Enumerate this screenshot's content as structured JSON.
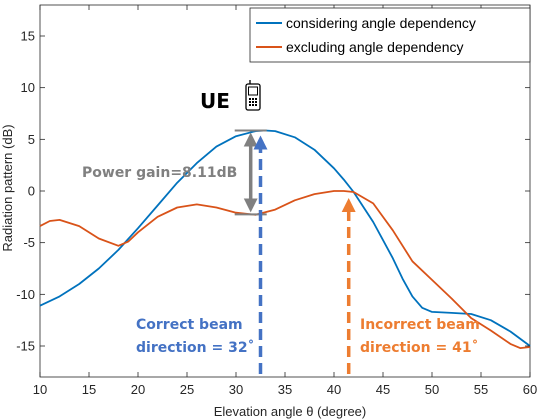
{
  "chart_data": {
    "type": "line",
    "xlabel": "Elevation angle θ (degree)",
    "ylabel": "Radiation pattern (dB)",
    "xlim": [
      10,
      60
    ],
    "ylim": [
      -18,
      18
    ],
    "xticks": [
      10,
      15,
      20,
      25,
      30,
      35,
      40,
      45,
      50,
      55,
      60
    ],
    "yticks": [
      -15,
      -10,
      -5,
      0,
      5,
      10,
      15
    ],
    "grid": false,
    "legend_position": "top-right",
    "series": [
      {
        "name": "considering angle dependency",
        "color": "#0072BD",
        "x": [
          10,
          12,
          14,
          16,
          18,
          20,
          22,
          24,
          26,
          28,
          30,
          32,
          33,
          34,
          36,
          38,
          40,
          41,
          42,
          44,
          46,
          47,
          48,
          49,
          50,
          52,
          54,
          56,
          58,
          60
        ],
        "y": [
          -11.1,
          -10.2,
          -9.0,
          -7.5,
          -5.7,
          -3.6,
          -1.4,
          0.8,
          2.7,
          4.3,
          5.3,
          5.8,
          5.85,
          5.8,
          5.2,
          4.0,
          2.2,
          1.1,
          -0.1,
          -3.0,
          -6.5,
          -8.5,
          -10.2,
          -11.3,
          -11.7,
          -11.8,
          -11.9,
          -12.5,
          -13.6,
          -15.0
        ]
      },
      {
        "name": "excluding angle dependency",
        "color": "#D95319",
        "x": [
          10,
          11,
          12,
          14,
          16,
          18,
          19,
          20,
          22,
          24,
          26,
          28,
          30,
          32,
          34,
          36,
          38,
          40,
          41,
          42,
          44,
          46,
          48,
          50,
          52,
          54,
          56,
          58,
          59,
          60
        ],
        "y": [
          -3.4,
          -2.9,
          -2.8,
          -3.4,
          -4.6,
          -5.3,
          -4.9,
          -4.0,
          -2.5,
          -1.6,
          -1.3,
          -1.6,
          -2.1,
          -2.3,
          -1.8,
          -0.9,
          -0.3,
          0.0,
          0.0,
          -0.1,
          -1.2,
          -3.8,
          -6.8,
          -8.6,
          -10.4,
          -12.3,
          -13.5,
          -14.8,
          -15.2,
          -15.1
        ]
      }
    ],
    "annotations": {
      "ue_label": "UE",
      "power_gain": "Power gain=8.11dB",
      "correct_line1": "Correct beam",
      "correct_line2": "direction = 32˚",
      "incorrect_line1": "Incorrect beam",
      "incorrect_line2": "direction = 41˚",
      "correct_angle": 32.5,
      "incorrect_angle": 41.5,
      "gain_x": 31.5,
      "gain_top": 5.85,
      "gain_bottom": -2.26,
      "correct_color": "#4472C4",
      "incorrect_color": "#ED7D31",
      "gain_color": "#808080"
    }
  }
}
